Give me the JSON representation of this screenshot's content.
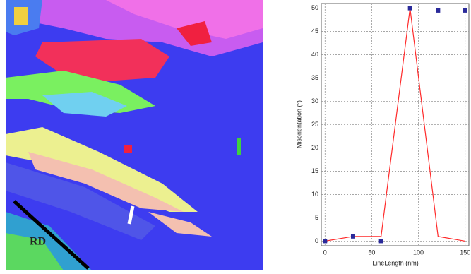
{
  "image": {
    "label": "RD"
  },
  "chart_data": {
    "type": "line",
    "x_label": "LineLength (nm)",
    "y_label": "Misorientation (°)",
    "x": [
      0,
      30,
      60,
      91,
      121,
      150
    ],
    "series": [
      {
        "color": "#ff2a2a",
        "style": "line",
        "values": [
          0,
          1,
          1,
          50,
          1,
          0
        ]
      },
      {
        "color": "#2a2a9a",
        "style": "square",
        "values": [
          0,
          1,
          0,
          50,
          49.5,
          49.5
        ]
      }
    ],
    "xlim": [
      -4,
      154
    ],
    "ylim": [
      -1,
      51
    ],
    "xticks": [
      0,
      50,
      100,
      150
    ],
    "yticks": [
      0,
      5,
      10,
      15,
      20,
      25,
      30,
      35,
      40,
      45,
      50
    ],
    "grid": true
  }
}
